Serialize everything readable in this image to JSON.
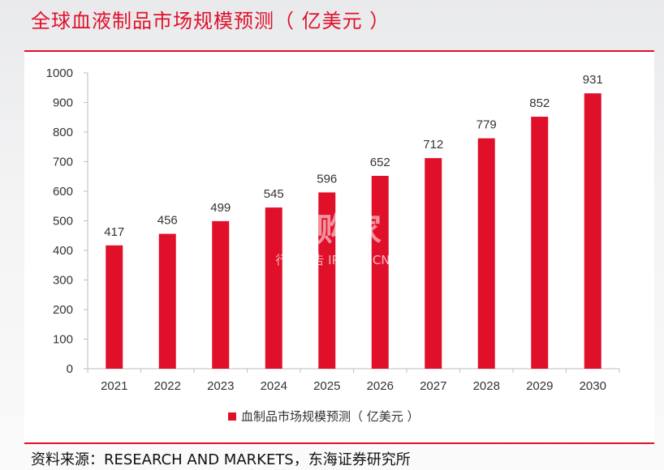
{
  "page": {
    "title": "全球血液制品市场规模预测（ 亿美元 ）",
    "source": "资料来源：RESEARCH AND MARKETS，东海证券研究所"
  },
  "watermark": {
    "main": "並购家",
    "sub": "行业报告 IPOIPO.CN"
  },
  "colors": {
    "accent": "#e0102a",
    "bar": "#e0102a"
  },
  "chart_data": {
    "type": "bar",
    "categories": [
      "2021",
      "2022",
      "2023",
      "2024",
      "2025",
      "2026",
      "2027",
      "2028",
      "2029",
      "2030"
    ],
    "series": [
      {
        "name": "血制品市场规模预测（ 亿美元 ）",
        "values": [
          417,
          456,
          499,
          545,
          596,
          652,
          712,
          779,
          852,
          931
        ]
      }
    ],
    "ylim": [
      0,
      1000
    ],
    "yticks": [
      0,
      100,
      200,
      300,
      400,
      500,
      600,
      700,
      800,
      900,
      1000
    ],
    "grid": false,
    "legend_position": "bottom",
    "data_labels": true
  }
}
